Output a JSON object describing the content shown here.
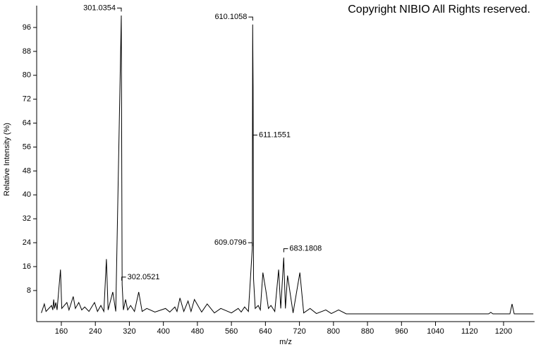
{
  "chart_data": {
    "type": "line",
    "title": "Copyright NIBIO All Rights reserved.",
    "x_label": "m/z",
    "y_label": "Relative Intensity (%)",
    "color": "#000000",
    "xlim": [
      102,
      1273
    ],
    "ylim": [
      -2.4,
      103.3
    ],
    "xticks": [
      160,
      240,
      320,
      400,
      480,
      560,
      640,
      720,
      800,
      880,
      960,
      1040,
      1120,
      1200
    ],
    "yticks": [
      8,
      16,
      24,
      32,
      40,
      48,
      56,
      64,
      72,
      80,
      88,
      96
    ],
    "x": [
      113,
      120,
      124,
      137,
      140,
      142,
      144,
      147,
      150,
      158,
      161,
      173,
      178,
      188,
      193,
      201,
      208,
      215,
      225,
      238,
      245,
      253,
      260,
      266,
      270,
      281,
      288,
      301,
      302,
      303,
      306,
      311,
      316,
      323,
      332,
      342,
      350,
      361,
      380,
      405,
      415,
      427,
      432,
      439,
      448,
      458,
      465,
      473,
      490,
      503,
      520,
      535,
      560,
      576,
      583,
      591,
      600,
      609,
      610,
      611,
      612,
      616,
      623,
      628,
      634,
      641,
      647,
      653,
      662,
      671,
      676,
      683,
      687,
      692,
      705,
      721,
      730,
      745,
      760,
      782,
      795,
      812,
      830,
      1165,
      1170,
      1175,
      1215,
      1220,
      1225,
      1270
    ],
    "values": [
      0.5,
      3.5,
      1,
      3,
      1.5,
      5,
      2,
      4,
      1.5,
      15,
      2,
      4,
      1.5,
      6,
      2,
      4,
      1.5,
      2.5,
      1,
      4,
      1,
      3,
      1,
      18.5,
      1.5,
      7.5,
      1,
      100,
      54,
      10,
      1.5,
      5,
      1.5,
      3,
      1,
      7.5,
      1,
      2,
      0.8,
      2,
      0.8,
      2.5,
      1,
      5.5,
      1,
      4.5,
      1,
      5,
      0.8,
      3.5,
      0.5,
      2,
      0.5,
      2,
      0.8,
      2.5,
      1,
      22,
      97,
      76,
      12,
      2,
      3,
      1.5,
      14,
      8,
      2,
      3,
      1,
      15,
      2,
      19,
      2,
      13,
      0.5,
      14,
      0.5,
      2,
      0.3,
      1.5,
      0.3,
      1.5,
      0.2,
      0.2,
      0.7,
      0.2,
      0.2,
      3.5,
      0.2,
      0.2
    ],
    "annotations": [
      {
        "x": 301.0354,
        "y": 102.5,
        "side": "left"
      },
      {
        "x": 302.0521,
        "y": 12.5,
        "side": "right"
      },
      {
        "x": 610.1058,
        "y": 99.5,
        "side": "left"
      },
      {
        "x": 611.1551,
        "y": 60,
        "side": "right"
      },
      {
        "x": 609.0796,
        "y": 24,
        "side": "left"
      },
      {
        "x": 683.1808,
        "y": 22,
        "side": "right"
      }
    ]
  }
}
